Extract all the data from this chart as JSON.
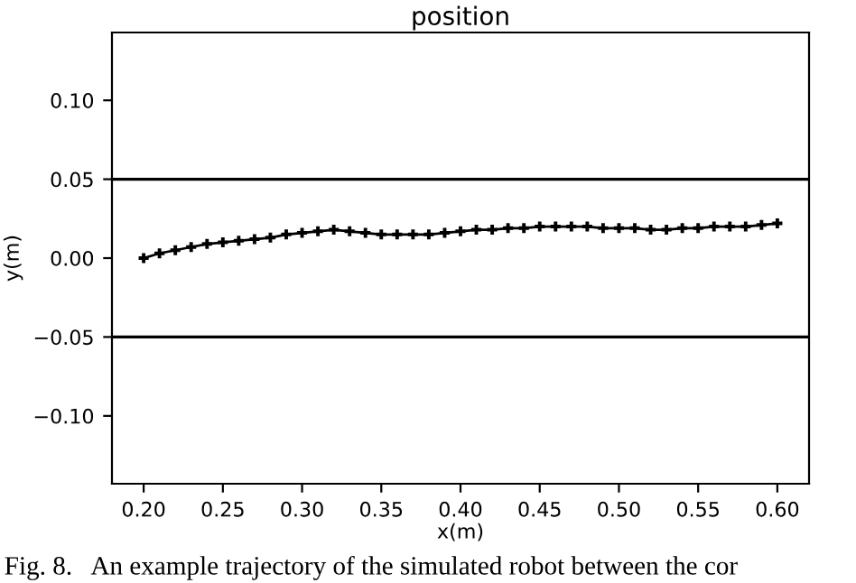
{
  "chart_data": {
    "type": "line",
    "title": "position",
    "xlabel": "x(m)",
    "ylabel": "y(m)",
    "x": [
      0.2,
      0.21,
      0.22,
      0.23,
      0.24,
      0.25,
      0.26,
      0.27,
      0.28,
      0.29,
      0.3,
      0.31,
      0.32,
      0.33,
      0.34,
      0.35,
      0.36,
      0.37,
      0.38,
      0.39,
      0.4,
      0.41,
      0.42,
      0.43,
      0.44,
      0.45,
      0.46,
      0.47,
      0.48,
      0.49,
      0.5,
      0.51,
      0.52,
      0.53,
      0.54,
      0.55,
      0.56,
      0.57,
      0.58,
      0.59,
      0.6
    ],
    "series": [
      {
        "color": "#000000",
        "values": [
          0.0,
          0.003,
          0.005,
          0.007,
          0.009,
          0.01,
          0.011,
          0.012,
          0.013,
          0.015,
          0.016,
          0.017,
          0.018,
          0.017,
          0.016,
          0.015,
          0.015,
          0.015,
          0.015,
          0.016,
          0.017,
          0.018,
          0.018,
          0.019,
          0.019,
          0.02,
          0.02,
          0.02,
          0.02,
          0.019,
          0.019,
          0.019,
          0.018,
          0.018,
          0.019,
          0.019,
          0.02,
          0.02,
          0.02,
          0.021,
          0.022
        ]
      }
    ],
    "marker": "cross",
    "line_style": "solid",
    "xlim": [
      0.18,
      0.62
    ],
    "ylim": [
      -0.143,
      0.143
    ],
    "xticks": [
      {
        "value": 0.2,
        "label": "0.20"
      },
      {
        "value": 0.25,
        "label": "0.25"
      },
      {
        "value": 0.3,
        "label": "0.30"
      },
      {
        "value": 0.35,
        "label": "0.35"
      },
      {
        "value": 0.4,
        "label": "0.40"
      },
      {
        "value": 0.45,
        "label": "0.45"
      },
      {
        "value": 0.5,
        "label": "0.50"
      },
      {
        "value": 0.55,
        "label": "0.55"
      },
      {
        "value": 0.6,
        "label": "0.60"
      }
    ],
    "yticks": [
      {
        "value": -0.1,
        "label": "−0.10"
      },
      {
        "value": -0.05,
        "label": "−0.05"
      },
      {
        "value": 0,
        "label": "0.00"
      },
      {
        "value": 0.05,
        "label": "0.05"
      },
      {
        "value": 0.1,
        "label": "0.10"
      }
    ],
    "ref_lines": [
      {
        "axis": "y",
        "value": 0.05,
        "color": "#000000"
      },
      {
        "axis": "y",
        "value": -0.05,
        "color": "#000000"
      }
    ],
    "annotations": [
      "Fig. 8.   An example trajectory of the simulated robot between the cor"
    ]
  }
}
